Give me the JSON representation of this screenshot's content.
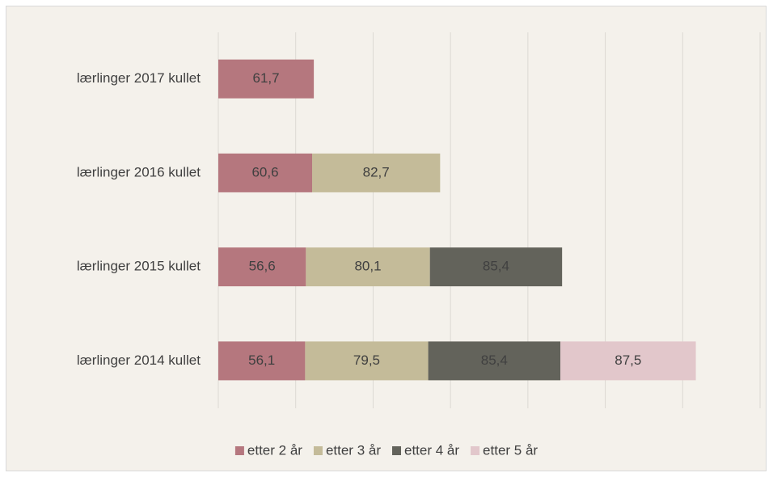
{
  "chart_data": {
    "type": "stacked_barh",
    "categories": [
      "lærlinger 2017 kullet",
      "lærlinger 2016 kullet",
      "lærlinger 2015 kullet",
      "lærlinger 2014 kullet"
    ],
    "series": [
      {
        "name": "etter 2 år",
        "color": "#b5777e",
        "values": [
          61.7,
          60.6,
          56.6,
          56.1
        ],
        "value_labels": [
          "61,7",
          "60,6",
          "56,6",
          "56,1"
        ]
      },
      {
        "name": "etter 3 år",
        "color": "#c4bb99",
        "values": [
          null,
          82.7,
          80.1,
          79.5
        ],
        "value_labels": [
          null,
          "82,7",
          "80,1",
          "79,5"
        ]
      },
      {
        "name": "etter 4 år",
        "color": "#63635b",
        "values": [
          null,
          null,
          85.4,
          85.4
        ],
        "value_labels": [
          null,
          null,
          "85,4",
          "85,4"
        ]
      },
      {
        "name": "etter 5 år",
        "color": "#e2c7cb",
        "values": [
          null,
          null,
          null,
          87.5
        ],
        "value_labels": [
          null,
          null,
          null,
          "87,5"
        ]
      }
    ],
    "xlim": [
      0,
      350
    ],
    "xticks": [
      0,
      50,
      100,
      150,
      200,
      250,
      300,
      350
    ],
    "grid": true,
    "legend": "bottom"
  }
}
